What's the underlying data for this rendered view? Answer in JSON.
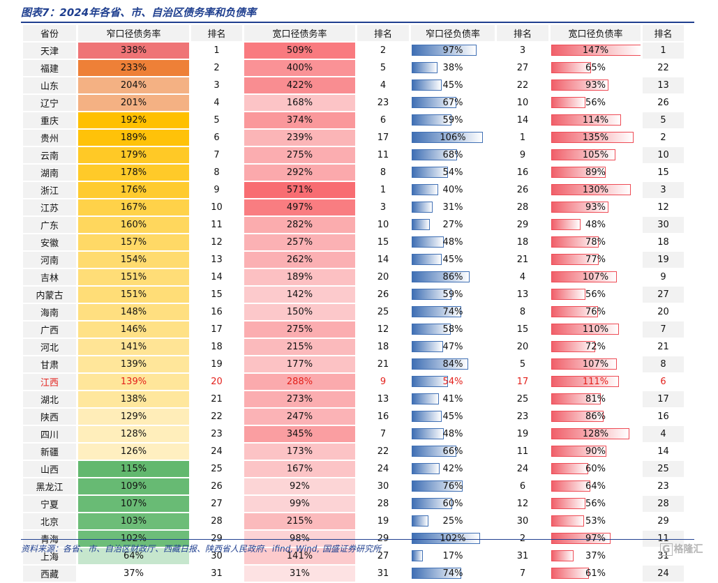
{
  "figure": {
    "title": "图表7：2024年各省、市、自治区债务率和负债率",
    "source": "资料来源：各省、市、自治区财政厅、西藏日报、陕西省人民政府、ifind, Wind, 国盛证券研究所",
    "logo_text": "格隆汇",
    "logo_icon_text": "G"
  },
  "table": {
    "headers": [
      "省份",
      "窄口径债务率",
      "排名",
      "宽口径债务率",
      "排名",
      "窄口径负债率",
      "排名",
      "宽口径负债率",
      "排名"
    ],
    "highlight_row": "江西",
    "rows": [
      {
        "province": "天津",
        "narrow_debt": "338%",
        "narrow_debt_rank": "1",
        "broad_debt": "509%",
        "broad_debt_rank": "2",
        "narrow_liab": "97%",
        "narrow_liab_rank": "3",
        "broad_liab": "147%",
        "broad_liab_rank": "1"
      },
      {
        "province": "福建",
        "narrow_debt": "233%",
        "narrow_debt_rank": "2",
        "broad_debt": "400%",
        "broad_debt_rank": "5",
        "narrow_liab": "38%",
        "narrow_liab_rank": "27",
        "broad_liab": "65%",
        "broad_liab_rank": "22"
      },
      {
        "province": "山东",
        "narrow_debt": "204%",
        "narrow_debt_rank": "3",
        "broad_debt": "422%",
        "broad_debt_rank": "4",
        "narrow_liab": "45%",
        "narrow_liab_rank": "22",
        "broad_liab": "93%",
        "broad_liab_rank": "13"
      },
      {
        "province": "辽宁",
        "narrow_debt": "201%",
        "narrow_debt_rank": "4",
        "broad_debt": "168%",
        "broad_debt_rank": "23",
        "narrow_liab": "67%",
        "narrow_liab_rank": "10",
        "broad_liab": "56%",
        "broad_liab_rank": "26"
      },
      {
        "province": "重庆",
        "narrow_debt": "192%",
        "narrow_debt_rank": "5",
        "broad_debt": "374%",
        "broad_debt_rank": "6",
        "narrow_liab": "59%",
        "narrow_liab_rank": "14",
        "broad_liab": "114%",
        "broad_liab_rank": "5"
      },
      {
        "province": "贵州",
        "narrow_debt": "189%",
        "narrow_debt_rank": "6",
        "broad_debt": "239%",
        "broad_debt_rank": "17",
        "narrow_liab": "106%",
        "narrow_liab_rank": "1",
        "broad_liab": "135%",
        "broad_liab_rank": "2"
      },
      {
        "province": "云南",
        "narrow_debt": "179%",
        "narrow_debt_rank": "7",
        "broad_debt": "275%",
        "broad_debt_rank": "11",
        "narrow_liab": "68%",
        "narrow_liab_rank": "9",
        "broad_liab": "105%",
        "broad_liab_rank": "10"
      },
      {
        "province": "湖南",
        "narrow_debt": "178%",
        "narrow_debt_rank": "8",
        "broad_debt": "292%",
        "broad_debt_rank": "8",
        "narrow_liab": "54%",
        "narrow_liab_rank": "16",
        "broad_liab": "89%",
        "broad_liab_rank": "15"
      },
      {
        "province": "浙江",
        "narrow_debt": "176%",
        "narrow_debt_rank": "9",
        "broad_debt": "571%",
        "broad_debt_rank": "1",
        "narrow_liab": "40%",
        "narrow_liab_rank": "26",
        "broad_liab": "130%",
        "broad_liab_rank": "3"
      },
      {
        "province": "江苏",
        "narrow_debt": "167%",
        "narrow_debt_rank": "10",
        "broad_debt": "497%",
        "broad_debt_rank": "3",
        "narrow_liab": "31%",
        "narrow_liab_rank": "28",
        "broad_liab": "93%",
        "broad_liab_rank": "12"
      },
      {
        "province": "广东",
        "narrow_debt": "160%",
        "narrow_debt_rank": "11",
        "broad_debt": "282%",
        "broad_debt_rank": "10",
        "narrow_liab": "27%",
        "narrow_liab_rank": "29",
        "broad_liab": "48%",
        "broad_liab_rank": "30"
      },
      {
        "province": "安徽",
        "narrow_debt": "157%",
        "narrow_debt_rank": "12",
        "broad_debt": "257%",
        "broad_debt_rank": "15",
        "narrow_liab": "48%",
        "narrow_liab_rank": "18",
        "broad_liab": "78%",
        "broad_liab_rank": "18"
      },
      {
        "province": "河南",
        "narrow_debt": "154%",
        "narrow_debt_rank": "13",
        "broad_debt": "262%",
        "broad_debt_rank": "14",
        "narrow_liab": "45%",
        "narrow_liab_rank": "21",
        "broad_liab": "77%",
        "broad_liab_rank": "19"
      },
      {
        "province": "吉林",
        "narrow_debt": "151%",
        "narrow_debt_rank": "14",
        "broad_debt": "189%",
        "broad_debt_rank": "20",
        "narrow_liab": "86%",
        "narrow_liab_rank": "4",
        "broad_liab": "107%",
        "broad_liab_rank": "9"
      },
      {
        "province": "内蒙古",
        "narrow_debt": "151%",
        "narrow_debt_rank": "15",
        "broad_debt": "142%",
        "broad_debt_rank": "26",
        "narrow_liab": "59%",
        "narrow_liab_rank": "13",
        "broad_liab": "56%",
        "broad_liab_rank": "27"
      },
      {
        "province": "海南",
        "narrow_debt": "148%",
        "narrow_debt_rank": "16",
        "broad_debt": "150%",
        "broad_debt_rank": "25",
        "narrow_liab": "74%",
        "narrow_liab_rank": "8",
        "broad_liab": "76%",
        "broad_liab_rank": "20"
      },
      {
        "province": "广西",
        "narrow_debt": "146%",
        "narrow_debt_rank": "17",
        "broad_debt": "275%",
        "broad_debt_rank": "12",
        "narrow_liab": "58%",
        "narrow_liab_rank": "15",
        "broad_liab": "110%",
        "broad_liab_rank": "7"
      },
      {
        "province": "河北",
        "narrow_debt": "141%",
        "narrow_debt_rank": "18",
        "broad_debt": "215%",
        "broad_debt_rank": "18",
        "narrow_liab": "47%",
        "narrow_liab_rank": "20",
        "broad_liab": "72%",
        "broad_liab_rank": "21"
      },
      {
        "province": "甘肃",
        "narrow_debt": "139%",
        "narrow_debt_rank": "19",
        "broad_debt": "177%",
        "broad_debt_rank": "21",
        "narrow_liab": "84%",
        "narrow_liab_rank": "5",
        "broad_liab": "107%",
        "broad_liab_rank": "8"
      },
      {
        "province": "江西",
        "narrow_debt": "139%",
        "narrow_debt_rank": "20",
        "broad_debt": "288%",
        "broad_debt_rank": "9",
        "narrow_liab": "54%",
        "narrow_liab_rank": "17",
        "broad_liab": "111%",
        "broad_liab_rank": "6"
      },
      {
        "province": "湖北",
        "narrow_debt": "138%",
        "narrow_debt_rank": "21",
        "broad_debt": "273%",
        "broad_debt_rank": "13",
        "narrow_liab": "41%",
        "narrow_liab_rank": "25",
        "broad_liab": "81%",
        "broad_liab_rank": "17"
      },
      {
        "province": "陕西",
        "narrow_debt": "129%",
        "narrow_debt_rank": "22",
        "broad_debt": "247%",
        "broad_debt_rank": "16",
        "narrow_liab": "45%",
        "narrow_liab_rank": "23",
        "broad_liab": "86%",
        "broad_liab_rank": "16"
      },
      {
        "province": "四川",
        "narrow_debt": "128%",
        "narrow_debt_rank": "23",
        "broad_debt": "345%",
        "broad_debt_rank": "7",
        "narrow_liab": "48%",
        "narrow_liab_rank": "19",
        "broad_liab": "128%",
        "broad_liab_rank": "4"
      },
      {
        "province": "新疆",
        "narrow_debt": "126%",
        "narrow_debt_rank": "24",
        "broad_debt": "173%",
        "broad_debt_rank": "22",
        "narrow_liab": "66%",
        "narrow_liab_rank": "11",
        "broad_liab": "90%",
        "broad_liab_rank": "14"
      },
      {
        "province": "山西",
        "narrow_debt": "115%",
        "narrow_debt_rank": "25",
        "broad_debt": "167%",
        "broad_debt_rank": "24",
        "narrow_liab": "42%",
        "narrow_liab_rank": "24",
        "broad_liab": "60%",
        "broad_liab_rank": "25"
      },
      {
        "province": "黑龙江",
        "narrow_debt": "109%",
        "narrow_debt_rank": "26",
        "broad_debt": "92%",
        "broad_debt_rank": "30",
        "narrow_liab": "76%",
        "narrow_liab_rank": "6",
        "broad_liab": "64%",
        "broad_liab_rank": "23"
      },
      {
        "province": "宁夏",
        "narrow_debt": "107%",
        "narrow_debt_rank": "27",
        "broad_debt": "99%",
        "broad_debt_rank": "28",
        "narrow_liab": "60%",
        "narrow_liab_rank": "12",
        "broad_liab": "56%",
        "broad_liab_rank": "28"
      },
      {
        "province": "北京",
        "narrow_debt": "103%",
        "narrow_debt_rank": "28",
        "broad_debt": "215%",
        "broad_debt_rank": "19",
        "narrow_liab": "25%",
        "narrow_liab_rank": "30",
        "broad_liab": "53%",
        "broad_liab_rank": "29"
      },
      {
        "province": "青海",
        "narrow_debt": "102%",
        "narrow_debt_rank": "29",
        "broad_debt": "98%",
        "broad_debt_rank": "29",
        "narrow_liab": "102%",
        "narrow_liab_rank": "2",
        "broad_liab": "97%",
        "broad_liab_rank": "11"
      },
      {
        "province": "上海",
        "narrow_debt": "64%",
        "narrow_debt_rank": "30",
        "broad_debt": "141%",
        "broad_debt_rank": "27",
        "narrow_liab": "17%",
        "narrow_liab_rank": "31",
        "broad_liab": "37%",
        "broad_liab_rank": "31"
      },
      {
        "province": "西藏",
        "narrow_debt": "37%",
        "narrow_debt_rank": "31",
        "broad_debt": "31%",
        "broad_debt_rank": "31",
        "narrow_liab": "74%",
        "narrow_liab_rank": "7",
        "broad_liab": "61%",
        "broad_liab_rank": "24"
      }
    ]
  },
  "colors": {
    "title": "#1f3f8f",
    "highlight_text": "#e3201b",
    "bar_blue": "#3f6fb4",
    "bar_red": "#ee4a54",
    "narrow_debt_scale": [
      "#ef7476",
      "#ee8037",
      "#f4b183",
      "#ffc000",
      "#ffd966",
      "#fff2cc",
      "#62b86e",
      "#c6e6cd",
      "#ffffff"
    ],
    "broad_debt_scale": [
      "#f86d72",
      "#fde2e3"
    ]
  }
}
